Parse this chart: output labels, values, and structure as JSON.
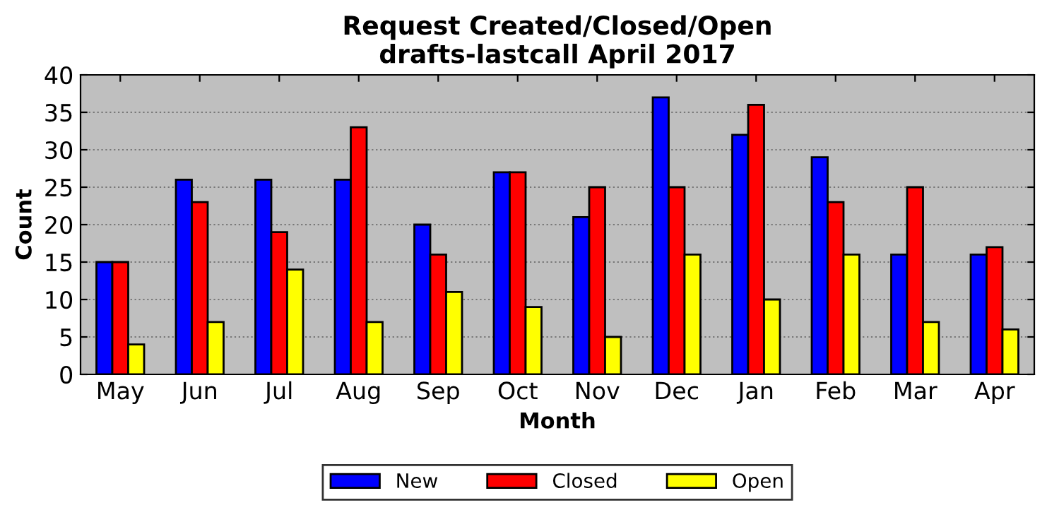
{
  "chart_data": {
    "type": "bar",
    "title": "Request Created/Closed/Open\ndrafts-lastcall April 2017",
    "xlabel": "Month",
    "ylabel": "Count",
    "categories": [
      "May",
      "Jun",
      "Jul",
      "Aug",
      "Sep",
      "Oct",
      "Nov",
      "Dec",
      "Jan",
      "Feb",
      "Mar",
      "Apr"
    ],
    "series": [
      {
        "name": "New",
        "color": "#0000ff",
        "values": [
          15,
          26,
          26,
          26,
          20,
          27,
          21,
          37,
          32,
          29,
          16,
          16
        ]
      },
      {
        "name": "Closed",
        "color": "#ff0000",
        "values": [
          15,
          23,
          19,
          33,
          16,
          27,
          25,
          25,
          36,
          23,
          25,
          17
        ]
      },
      {
        "name": "Open",
        "color": "#ffff00",
        "values": [
          4,
          7,
          14,
          7,
          11,
          9,
          5,
          16,
          10,
          16,
          7,
          6
        ]
      }
    ],
    "ylim": [
      0,
      40
    ],
    "yticks": [
      0,
      5,
      10,
      15,
      20,
      25,
      30,
      35,
      40
    ],
    "grid": "y",
    "legend": "bottom"
  }
}
